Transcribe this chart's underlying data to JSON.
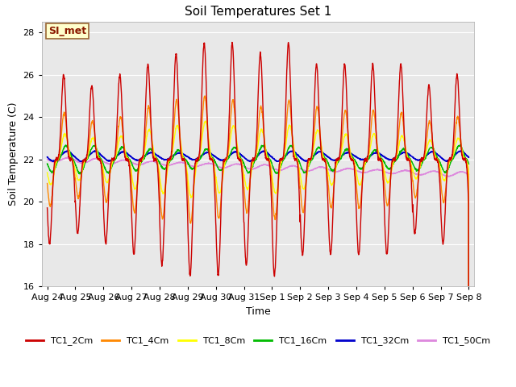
{
  "title": "Soil Temperatures Set 1",
  "xlabel": "Time",
  "ylabel": "Soil Temperature (C)",
  "ylim": [
    16,
    28.5
  ],
  "bg_color": "#e8e8e8",
  "grid_color": "white",
  "annotation_text": "SI_met",
  "annotation_bg": "#ffffcc",
  "annotation_border": "#996633",
  "series": {
    "TC1_2Cm": {
      "color": "#cc0000",
      "lw": 1.0
    },
    "TC1_4Cm": {
      "color": "#ff8800",
      "lw": 1.0
    },
    "TC1_8Cm": {
      "color": "#ffff00",
      "lw": 1.0
    },
    "TC1_16Cm": {
      "color": "#00bb00",
      "lw": 1.0
    },
    "TC1_32Cm": {
      "color": "#0000cc",
      "lw": 1.2
    },
    "TC1_50Cm": {
      "color": "#dd88dd",
      "lw": 1.0
    }
  },
  "tick_labels": [
    "Aug 24",
    "Aug 25",
    "Aug 26",
    "Aug 27",
    "Aug 28",
    "Aug 29",
    "Aug 30",
    "Aug 31",
    "Sep 1",
    "Sep 2",
    "Sep 3",
    "Sep 4",
    "Sep 5",
    "Sep 6",
    "Sep 7",
    "Sep 8"
  ],
  "tick_positions": [
    0,
    1,
    2,
    3,
    4,
    5,
    6,
    7,
    8,
    9,
    10,
    11,
    12,
    13,
    14,
    15
  ],
  "yticks": [
    16,
    18,
    20,
    22,
    24,
    26,
    28
  ]
}
